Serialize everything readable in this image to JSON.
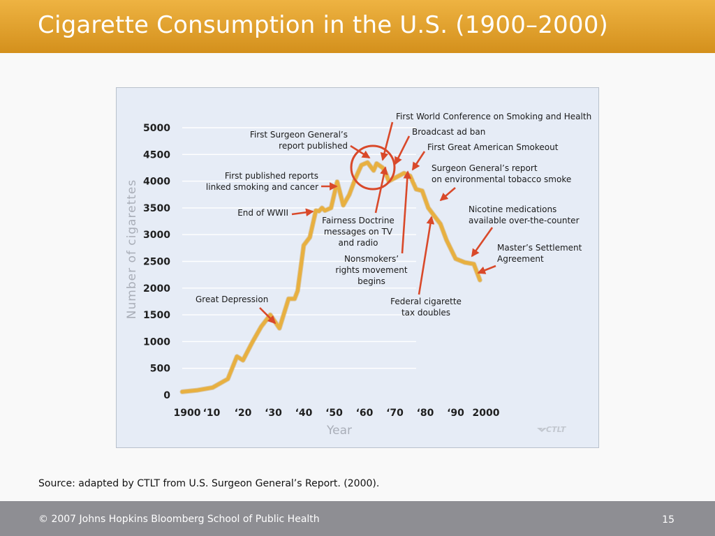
{
  "slide": {
    "title": "Cigarette Consumption in the U.S. (1900–2000)",
    "source": "Source: adapted by CTLT from U.S. Surgeon General’s Report. (2000).",
    "copyright": "© 2007 Johns Hopkins Bloomberg School of Public Health",
    "page_number": "15",
    "watermark": "CTLT"
  },
  "colors": {
    "title_bar": "#e2a02c",
    "chart_background": "#e6ecf6",
    "line": "#e8b040",
    "arrow": "#d9492a",
    "footer": "#8e8e93"
  },
  "chart_data": {
    "type": "line",
    "xlabel": "Year",
    "ylabel": "Number of cigarettes",
    "xlim": [
      1900,
      2000
    ],
    "ylim": [
      0,
      5000
    ],
    "yticks": [
      0,
      500,
      1000,
      1500,
      2000,
      2500,
      3000,
      3500,
      4000,
      4500,
      5000
    ],
    "ytick_labels": [
      "0",
      "500",
      "1000",
      "1500",
      "2000",
      "2500",
      "3000",
      "3500",
      "4000",
      "4500",
      "5000"
    ],
    "xtick_labels": [
      "1900",
      "‘10",
      "‘20",
      "‘30",
      "‘40",
      "‘50",
      "‘60",
      "‘70",
      "‘80",
      "‘90",
      "2000"
    ],
    "grid": true,
    "x": [
      1900,
      1905,
      1910,
      1915,
      1918,
      1920,
      1923,
      1926,
      1929,
      1932,
      1935,
      1937,
      1938,
      1940,
      1942,
      1944,
      1945,
      1946,
      1947,
      1949,
      1951,
      1953,
      1955,
      1957,
      1959,
      1961,
      1963,
      1964,
      1966,
      1967,
      1968,
      1970,
      1973,
      1975,
      1977,
      1979,
      1981,
      1983,
      1985,
      1987,
      1990,
      1993,
      1996,
      1998
    ],
    "y": [
      60,
      90,
      140,
      300,
      720,
      650,
      980,
      1280,
      1500,
      1250,
      1800,
      1800,
      1950,
      2800,
      2950,
      3450,
      3440,
      3500,
      3450,
      3500,
      3990,
      3550,
      3750,
      4050,
      4300,
      4350,
      4200,
      4330,
      4250,
      4150,
      4000,
      4060,
      4150,
      4100,
      3850,
      3820,
      3500,
      3350,
      3200,
      2900,
      2550,
      2480,
      2450,
      2150
    ],
    "annotations": [
      {
        "text": [
          "First World Conference on Smoking and Health"
        ],
        "year": 1966
      },
      {
        "text": [
          "Broadcast ad ban"
        ],
        "year": 1970
      },
      {
        "text": [
          "First Surgeon General’s",
          "report published"
        ],
        "year": 1964
      },
      {
        "text": [
          "First Great American Smokeout"
        ],
        "year": 1976
      },
      {
        "text": [
          "First published reports",
          "linked smoking and cancer"
        ],
        "year": 1950
      },
      {
        "text": [
          "Surgeon General’s report",
          "on environmental tobacco smoke"
        ],
        "year": 1986
      },
      {
        "text": [
          "End of WWII"
        ],
        "year": 1945
      },
      {
        "text": [
          "Fairness Doctrine",
          "messages on TV",
          "and radio"
        ],
        "year": 1967
      },
      {
        "text": [
          "Nicotine medications",
          "available over-the-counter"
        ],
        "year": 1996
      },
      {
        "text": [
          "Nonsmokers’",
          "rights movement",
          "begins"
        ],
        "year": 1971
      },
      {
        "text": [
          "Master’s Settlement",
          "Agreement"
        ],
        "year": 1998
      },
      {
        "text": [
          "Great Depression"
        ],
        "year": 1932
      },
      {
        "text": [
          "Federal cigarette",
          "tax doubles"
        ],
        "year": 1983
      }
    ]
  }
}
